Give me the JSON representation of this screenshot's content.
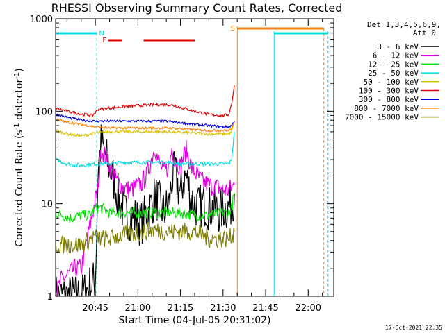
{
  "chart_data": {
    "type": "line",
    "title": "RHESSI Observing Summary Count Rates, Corrected",
    "xlabel": "Start Time (04-Jul-05 20:31:02)",
    "ylabel": "Corrected Count Rate (s⁻¹ detector⁻¹)",
    "ylabel_main": "Corrected Count Rate (s",
    "ylabel_sup1": "-1",
    "ylabel_mid": " detector",
    "ylabel_sup2": "-1",
    "ylabel_end": ")",
    "yscale": "log",
    "ylim": [
      1,
      1000
    ],
    "xlim_min": [
      31,
      129
    ],
    "xticks": [
      {
        "min": 45,
        "label": "20:45"
      },
      {
        "min": 60,
        "label": "21:00"
      },
      {
        "min": 75,
        "label": "21:15"
      },
      {
        "min": 90,
        "label": "21:30"
      },
      {
        "min": 105,
        "label": "21:45"
      },
      {
        "min": 120,
        "label": "22:00"
      }
    ],
    "yticks": [
      {
        "v": 1,
        "label": "1"
      },
      {
        "v": 10,
        "label": "10"
      },
      {
        "v": 100,
        "label": "100"
      },
      {
        "v": 1000,
        "label": "1000"
      }
    ],
    "legend": {
      "header": [
        "Det 1,3,4,5,6,9,",
        "Att 0"
      ],
      "position": "right"
    },
    "series": [
      {
        "name": "3 - 6 keV",
        "color": "#000000",
        "x": [
          31,
          40,
          45,
          46,
          47,
          49,
          51,
          53,
          55,
          57,
          59,
          61,
          63,
          65,
          66,
          67,
          69,
          71,
          72,
          73,
          75,
          76,
          77,
          79,
          81,
          83,
          85,
          87,
          89,
          90,
          92,
          93,
          94
        ],
        "y": [
          1,
          1,
          1.5,
          25,
          45,
          30,
          20,
          12,
          8,
          7,
          7,
          6,
          8,
          10,
          12,
          11,
          8,
          10,
          18,
          22,
          12,
          18,
          20,
          11,
          9,
          10,
          9,
          9,
          8,
          9,
          9,
          10,
          13
        ]
      },
      {
        "name": "6 - 12 keV",
        "color": "#e000e0",
        "x": [
          31,
          33,
          38,
          40,
          45,
          46,
          47,
          49,
          51,
          53,
          55,
          57,
          59,
          61,
          63,
          65,
          66,
          67,
          69,
          71,
          72,
          73,
          75,
          76,
          77,
          79,
          81,
          83,
          85,
          87,
          89,
          90,
          92,
          93,
          94
        ],
        "y": [
          1,
          1.5,
          2,
          2,
          11,
          14,
          40,
          30,
          22,
          17,
          15,
          14,
          15,
          16,
          20,
          32,
          42,
          30,
          22,
          25,
          40,
          30,
          25,
          32,
          38,
          24,
          20,
          17,
          16,
          15,
          15,
          14,
          14,
          15,
          16
        ]
      },
      {
        "name": "12 - 25 keV",
        "color": "#00e000",
        "x": [
          31,
          36,
          40,
          43,
          45,
          47,
          50,
          55,
          60,
          65,
          70,
          75,
          80,
          85,
          90,
          92,
          93,
          94
        ],
        "y": [
          8,
          7,
          7.5,
          7.5,
          9,
          9,
          8,
          8,
          8,
          8,
          8,
          8,
          7.5,
          7.5,
          8,
          8,
          9,
          13
        ]
      },
      {
        "name": "25 - 50 keV",
        "color": "#00e0e0",
        "x": [
          31,
          35,
          40,
          45,
          50,
          55,
          60,
          65,
          70,
          75,
          80,
          85,
          90,
          92,
          93,
          94
        ],
        "y": [
          30,
          27,
          26,
          27,
          27,
          28,
          28,
          28,
          28,
          27,
          27,
          27,
          27,
          27,
          30,
          60
        ]
      },
      {
        "name": "50 - 100 keV",
        "color": "#d4c400",
        "x": [
          31,
          35,
          40,
          45,
          50,
          55,
          60,
          65,
          70,
          75,
          80,
          85,
          90,
          92,
          93,
          94
        ],
        "y": [
          62,
          57,
          54,
          58,
          60,
          60,
          60,
          60,
          60,
          59,
          58,
          57,
          57,
          57,
          59,
          80
        ]
      },
      {
        "name": "100 - 300 keV",
        "color": "#e00000",
        "x": [
          31,
          35,
          40,
          44,
          46,
          50,
          55,
          60,
          65,
          70,
          73,
          75,
          80,
          85,
          90,
          92,
          93,
          94
        ],
        "y": [
          108,
          100,
          93,
          90,
          105,
          108,
          112,
          115,
          117,
          118,
          115,
          110,
          100,
          92,
          90,
          92,
          120,
          190
        ]
      },
      {
        "name": "300 - 800 keV",
        "color": "#0000e0",
        "x": [
          31,
          35,
          40,
          45,
          50,
          55,
          60,
          65,
          70,
          75,
          80,
          85,
          90,
          92,
          93,
          94
        ],
        "y": [
          93,
          86,
          80,
          78,
          78,
          78,
          78,
          78,
          78,
          75,
          72,
          70,
          68,
          68,
          70,
          78
        ]
      },
      {
        "name": "800 - 7000 keV",
        "color": "#ff8000",
        "x": [
          31,
          35,
          40,
          45,
          50,
          55,
          60,
          65,
          70,
          75,
          80,
          85,
          90,
          92,
          93,
          94
        ],
        "y": [
          82,
          76,
          72,
          68,
          66,
          66,
          66,
          66,
          66,
          65,
          63,
          62,
          62,
          62,
          65,
          75
        ]
      },
      {
        "name": "7000 - 15000 keV",
        "color": "#808000",
        "x": [
          31,
          36,
          40,
          45,
          47,
          50,
          55,
          60,
          65,
          70,
          75,
          80,
          85,
          90,
          92,
          93,
          94
        ],
        "y": [
          3.6,
          3.6,
          3.6,
          4.5,
          4.2,
          4.2,
          4.6,
          4.8,
          5.2,
          5,
          5,
          5,
          4.2,
          4.2,
          4.2,
          4.5,
          5
        ]
      }
    ],
    "flags": [
      {
        "letter": "N",
        "color": "#00e0e0"
      },
      {
        "letter": "F",
        "color": "#e00000"
      },
      {
        "letter": "S",
        "color": "#ff8000"
      }
    ],
    "footer_date": "17-Oct-2021 22:35"
  }
}
